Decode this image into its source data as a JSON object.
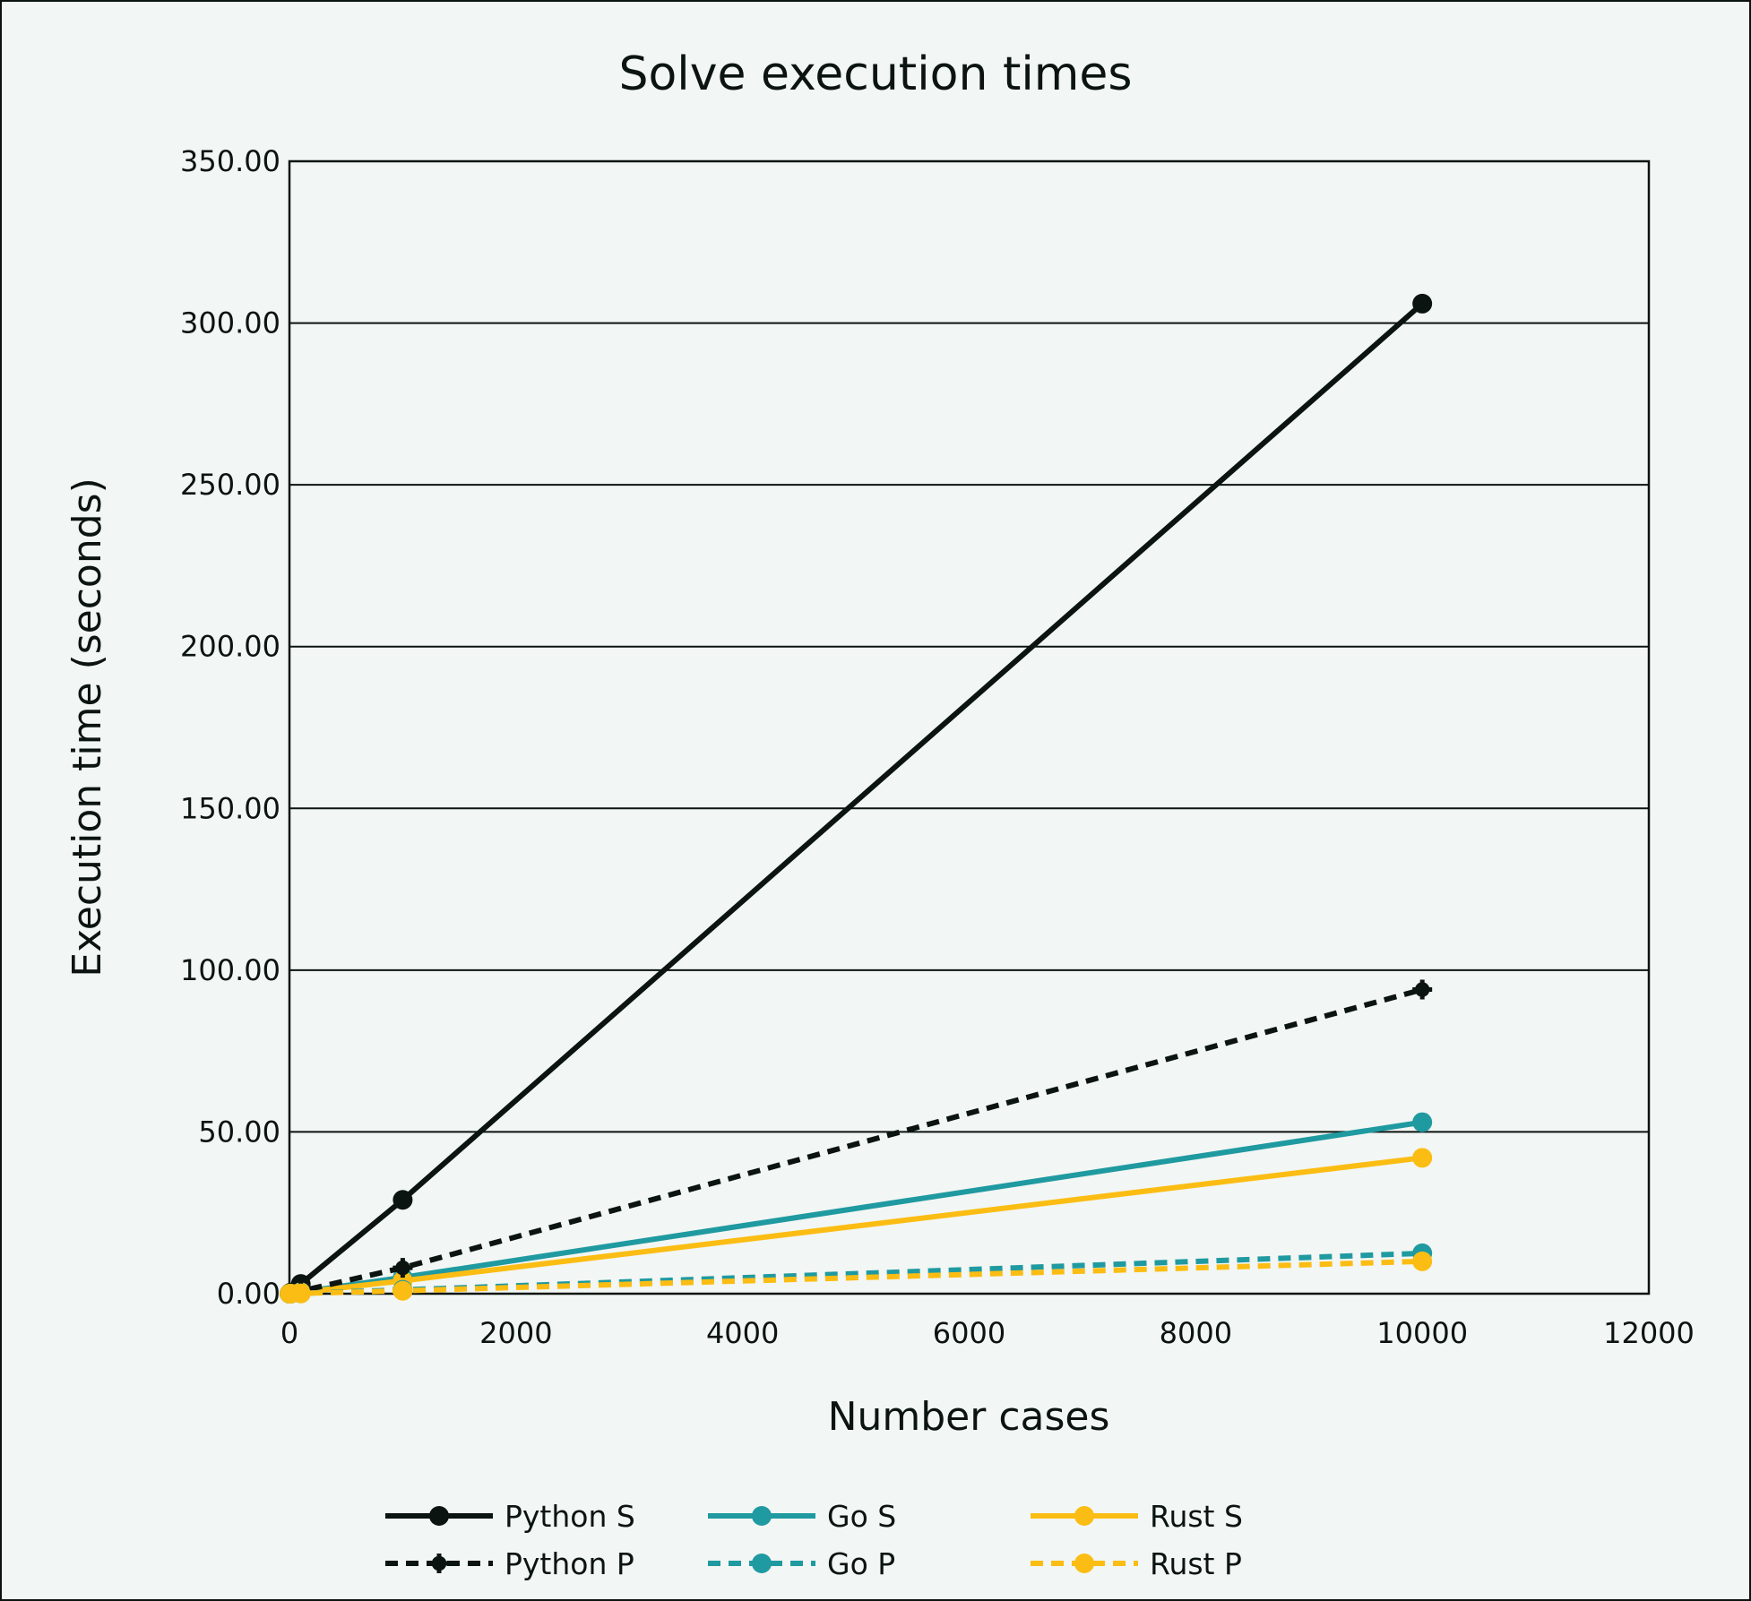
{
  "chart_data": {
    "type": "line",
    "title": "Solve execution times",
    "xlabel": "Number cases",
    "ylabel": "Execution time (seconds)",
    "xlim": [
      0,
      12000
    ],
    "ylim": [
      0,
      350
    ],
    "xticks": [
      0,
      2000,
      4000,
      6000,
      8000,
      10000,
      12000
    ],
    "xtick_labels": [
      "0",
      "2000",
      "4000",
      "6000",
      "8000",
      "10000",
      "12000"
    ],
    "yticks": [
      0,
      50,
      100,
      150,
      200,
      250,
      300,
      350
    ],
    "ytick_labels": [
      "0.00",
      "50.00",
      "100.00",
      "150.00",
      "200.00",
      "250.00",
      "300.00",
      "350.00"
    ],
    "grid": "horizontal",
    "legend_position": "bottom",
    "series": [
      {
        "name": "Python S",
        "color": "#0b1411",
        "dashed": false,
        "marker": "circle",
        "points": [
          [
            1,
            0.03
          ],
          [
            10,
            0.3
          ],
          [
            100,
            3.0
          ],
          [
            1000,
            29.0
          ],
          [
            10000,
            306.0
          ]
        ]
      },
      {
        "name": "Go S",
        "color": "#1f9aa0",
        "dashed": false,
        "marker": "circle",
        "points": [
          [
            1,
            0.01
          ],
          [
            10,
            0.05
          ],
          [
            100,
            0.5
          ],
          [
            1000,
            5.0
          ],
          [
            10000,
            53.0
          ]
        ]
      },
      {
        "name": "Rust S",
        "color": "#fbbd13",
        "dashed": false,
        "marker": "circle",
        "points": [
          [
            1,
            0.0
          ],
          [
            10,
            0.04
          ],
          [
            100,
            0.4
          ],
          [
            1000,
            4.0
          ],
          [
            10000,
            42.0
          ]
        ]
      },
      {
        "name": "Python P",
        "color": "#0b1411",
        "dashed": true,
        "marker": "cross",
        "points": [
          [
            1,
            0.01
          ],
          [
            10,
            0.1
          ],
          [
            100,
            0.8
          ],
          [
            1000,
            8.0
          ],
          [
            10000,
            94.0
          ]
        ]
      },
      {
        "name": "Go P",
        "color": "#1f9aa0",
        "dashed": true,
        "marker": "circle",
        "points": [
          [
            1,
            0.0
          ],
          [
            10,
            0.02
          ],
          [
            100,
            0.1
          ],
          [
            1000,
            1.2
          ],
          [
            10000,
            12.5
          ]
        ]
      },
      {
        "name": "Rust P",
        "color": "#fbbd13",
        "dashed": true,
        "marker": "circle",
        "points": [
          [
            1,
            0.0
          ],
          [
            10,
            0.01
          ],
          [
            100,
            0.08
          ],
          [
            1000,
            0.9
          ],
          [
            10000,
            10.0
          ]
        ]
      }
    ]
  }
}
